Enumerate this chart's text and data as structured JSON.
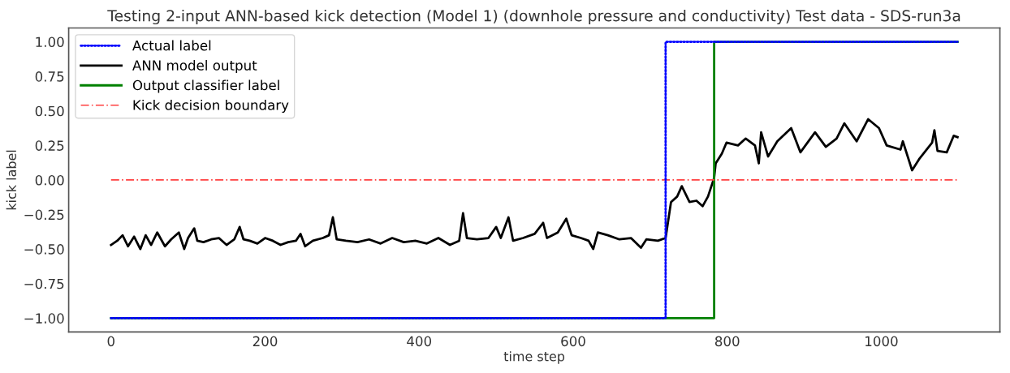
{
  "chart_data": {
    "type": "line",
    "title": "Testing 2-input ANN-based kick detection (Model 1) (downhole pressure and conductivity) Test data - SDS-run3a",
    "xlabel": "time step",
    "ylabel": "kick label",
    "xlim": [
      -55,
      1154
    ],
    "xticks": [
      0,
      200,
      400,
      600,
      800,
      1000
    ],
    "ylim": [
      -1.1,
      1.1
    ],
    "yticks": [
      {
        "value": -1.0,
        "label": "−1.00"
      },
      {
        "value": -0.75,
        "label": "−0.75"
      },
      {
        "value": -0.5,
        "label": "−0.50"
      },
      {
        "value": -0.25,
        "label": "−0.25"
      },
      {
        "value": 0.0,
        "label": "0.00"
      },
      {
        "value": 0.25,
        "label": "0.25"
      },
      {
        "value": 0.5,
        "label": "0.50"
      },
      {
        "value": 0.75,
        "label": "0.75"
      },
      {
        "value": 1.0,
        "label": "1.00"
      }
    ],
    "grid": false,
    "legend": "top left",
    "series": [
      {
        "name": "Actual label",
        "color": "#0000ff",
        "type": "step",
        "line_style": "dotted",
        "x": [
          0,
          720,
          1099
        ],
        "values": [
          -1,
          1,
          1
        ]
      },
      {
        "name": "ANN model output",
        "color": "#000000",
        "line_style": "solid",
        "x": [
          0,
          8,
          15,
          22,
          30,
          38,
          45,
          52,
          60,
          70,
          78,
          88,
          95,
          100,
          108,
          112,
          120,
          130,
          140,
          150,
          160,
          167,
          172,
          180,
          190,
          200,
          210,
          220,
          230,
          240,
          246,
          252,
          262,
          275,
          283,
          288,
          293,
          305,
          320,
          335,
          350,
          365,
          380,
          395,
          410,
          425,
          440,
          452,
          457,
          462,
          475,
          490,
          500,
          506,
          516,
          522,
          535,
          550,
          561,
          566,
          580,
          591,
          598,
          610,
          620,
          626,
          632,
          645,
          660,
          675,
          688,
          695,
          710,
          720,
          727,
          735,
          741,
          751,
          760,
          768,
          775,
          783,
          785,
          793,
          799,
          814,
          824,
          836,
          841,
          844,
          853,
          865,
          883,
          895,
          914,
          928,
          942,
          952,
          968,
          983,
          997,
          1007,
          1025,
          1028,
          1040,
          1049,
          1066,
          1069,
          1073,
          1085,
          1094,
          1099
        ],
        "values": [
          -0.47,
          -0.44,
          -0.4,
          -0.48,
          -0.41,
          -0.5,
          -0.4,
          -0.47,
          -0.38,
          -0.48,
          -0.43,
          -0.38,
          -0.5,
          -0.42,
          -0.35,
          -0.44,
          -0.45,
          -0.43,
          -0.42,
          -0.47,
          -0.43,
          -0.34,
          -0.43,
          -0.44,
          -0.46,
          -0.42,
          -0.44,
          -0.47,
          -0.45,
          -0.44,
          -0.39,
          -0.48,
          -0.44,
          -0.42,
          -0.4,
          -0.27,
          -0.43,
          -0.44,
          -0.45,
          -0.43,
          -0.46,
          -0.42,
          -0.45,
          -0.44,
          -0.46,
          -0.42,
          -0.47,
          -0.44,
          -0.24,
          -0.42,
          -0.43,
          -0.42,
          -0.34,
          -0.42,
          -0.27,
          -0.44,
          -0.42,
          -0.39,
          -0.31,
          -0.42,
          -0.38,
          -0.28,
          -0.4,
          -0.42,
          -0.44,
          -0.5,
          -0.38,
          -0.4,
          -0.43,
          -0.42,
          -0.49,
          -0.43,
          -0.44,
          -0.42,
          -0.16,
          -0.12,
          -0.045,
          -0.16,
          -0.15,
          -0.19,
          -0.12,
          0.015,
          0.12,
          0.19,
          0.27,
          0.25,
          0.3,
          0.25,
          0.12,
          0.345,
          0.17,
          0.28,
          0.375,
          0.2,
          0.345,
          0.24,
          0.3,
          0.41,
          0.28,
          0.44,
          0.375,
          0.25,
          0.22,
          0.28,
          0.07,
          0.15,
          0.27,
          0.36,
          0.21,
          0.2,
          0.32,
          0.31
        ]
      },
      {
        "name": "Output classifier label",
        "color": "#008000",
        "type": "step",
        "line_style": "solid",
        "x": [
          0,
          783,
          1099
        ],
        "values": [
          -1,
          1,
          1
        ]
      },
      {
        "name": "Kick decision boundary",
        "color": "#ff4040",
        "line_style": "dashdot",
        "x": [
          0,
          1099
        ],
        "values": [
          0,
          0
        ]
      }
    ]
  }
}
